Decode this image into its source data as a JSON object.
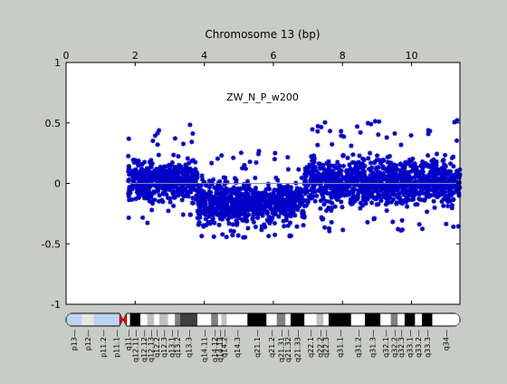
{
  "chart_data": {
    "type": "scatter",
    "title": "Chromosome 13 (bp)",
    "annotation": "ZW_N_P_w200",
    "xlabel": "",
    "ylabel": "",
    "xlim": [
      0,
      11.4
    ],
    "ylim": [
      -1,
      1
    ],
    "x_ticks": [
      0,
      2,
      4,
      6,
      8,
      10
    ],
    "x_tick_labels": [
      "0",
      "2",
      "4",
      "6",
      "8",
      "10"
    ],
    "y_ticks": [
      -1,
      -0.5,
      0,
      0.5,
      1
    ],
    "y_tick_labels": [
      "-1",
      "-0.5",
      "0",
      "0.5",
      "1"
    ],
    "x_axis_position": "top",
    "grid": false,
    "baseline_y": 0,
    "marker": "asterisk",
    "series": [
      {
        "color": "#0000c8",
        "segments": [
          {
            "x_start": 1.8,
            "x_end": 3.8,
            "center": 0.02,
            "typical_low": -0.22,
            "typical_high": 0.26,
            "min": -0.33,
            "max": 0.5
          },
          {
            "x_start": 3.8,
            "x_end": 6.9,
            "center": -0.16,
            "typical_low": -0.42,
            "typical_high": 0.1,
            "min": -0.45,
            "max": 0.27
          },
          {
            "x_start": 6.9,
            "x_end": 11.4,
            "center": 0.01,
            "typical_low": -0.28,
            "typical_high": 0.3,
            "min": -0.4,
            "max": 0.53
          }
        ]
      }
    ]
  },
  "ideogram": {
    "bands": [
      {
        "label": "p13",
        "x_start": 0.0,
        "x_end": 0.45,
        "color": "#bcd4f2"
      },
      {
        "label": "p12",
        "x_start": 0.45,
        "x_end": 0.8,
        "color": "#e6e6e6"
      },
      {
        "label": "p11.2",
        "x_start": 0.8,
        "x_end": 1.35,
        "color": "#bcd4f2"
      },
      {
        "label": "p11.1",
        "x_start": 1.35,
        "x_end": 1.55,
        "color": "#bcd4f2"
      },
      {
        "label": "q11",
        "x_start": 1.75,
        "x_end": 1.85,
        "color": "#ffffff"
      },
      {
        "label": "q12.11",
        "x_start": 1.85,
        "x_end": 2.15,
        "color": "#000000"
      },
      {
        "label": "q12.12",
        "x_start": 2.15,
        "x_end": 2.35,
        "color": "#ffffff"
      },
      {
        "label": "q12.13",
        "x_start": 2.35,
        "x_end": 2.55,
        "color": "#c0c0c0"
      },
      {
        "label": "q12.2",
        "x_start": 2.55,
        "x_end": 2.7,
        "color": "#ffffff"
      },
      {
        "label": "q12.3",
        "x_start": 2.7,
        "x_end": 2.95,
        "color": "#c0c0c0"
      },
      {
        "label": "q13.1",
        "x_start": 2.95,
        "x_end": 3.15,
        "color": "#ffffff"
      },
      {
        "label": "q13.2",
        "x_start": 3.15,
        "x_end": 3.3,
        "color": "#808080"
      },
      {
        "label": "q13.3",
        "x_start": 3.3,
        "x_end": 3.8,
        "color": "#404040"
      },
      {
        "label": "q14.11",
        "x_start": 3.8,
        "x_end": 4.2,
        "color": "#ffffff"
      },
      {
        "label": "q14.12",
        "x_start": 4.2,
        "x_end": 4.4,
        "color": "#808080"
      },
      {
        "label": "q14.13",
        "x_start": 4.4,
        "x_end": 4.5,
        "color": "#ffffff"
      },
      {
        "label": "q14.2",
        "x_start": 4.5,
        "x_end": 4.65,
        "color": "#c0c0c0"
      },
      {
        "label": "q14.3",
        "x_start": 4.65,
        "x_end": 5.25,
        "color": "#ffffff"
      },
      {
        "label": "q21.1",
        "x_start": 5.25,
        "x_end": 5.8,
        "color": "#000000"
      },
      {
        "label": "q21.2",
        "x_start": 5.8,
        "x_end": 6.1,
        "color": "#ffffff"
      },
      {
        "label": "q21.31",
        "x_start": 6.1,
        "x_end": 6.35,
        "color": "#808080"
      },
      {
        "label": "q21.32",
        "x_start": 6.35,
        "x_end": 6.5,
        "color": "#ffffff"
      },
      {
        "label": "q21.33",
        "x_start": 6.5,
        "x_end": 6.9,
        "color": "#000000"
      },
      {
        "label": "q22.1",
        "x_start": 6.9,
        "x_end": 7.25,
        "color": "#ffffff"
      },
      {
        "label": "q22.2",
        "x_start": 7.25,
        "x_end": 7.45,
        "color": "#c0c0c0"
      },
      {
        "label": "q22.3",
        "x_start": 7.45,
        "x_end": 7.6,
        "color": "#ffffff"
      },
      {
        "label": "q31.1",
        "x_start": 7.6,
        "x_end": 8.25,
        "color": "#000000"
      },
      {
        "label": "q31.2",
        "x_start": 8.25,
        "x_end": 8.65,
        "color": "#ffffff"
      },
      {
        "label": "q31.3",
        "x_start": 8.65,
        "x_end": 9.1,
        "color": "#000000"
      },
      {
        "label": "q32.1",
        "x_start": 9.1,
        "x_end": 9.4,
        "color": "#ffffff"
      },
      {
        "label": "q32.2",
        "x_start": 9.4,
        "x_end": 9.6,
        "color": "#808080"
      },
      {
        "label": "q32.3",
        "x_start": 9.6,
        "x_end": 9.8,
        "color": "#ffffff"
      },
      {
        "label": "q33.1",
        "x_start": 9.8,
        "x_end": 10.1,
        "color": "#000000"
      },
      {
        "label": "q33.2",
        "x_start": 10.1,
        "x_end": 10.3,
        "color": "#ffffff"
      },
      {
        "label": "q33.3",
        "x_start": 10.3,
        "x_end": 10.6,
        "color": "#000000"
      },
      {
        "label": "q34",
        "x_start": 10.6,
        "x_end": 11.4,
        "color": "#ffffff"
      }
    ],
    "centromere": {
      "x_start": 1.55,
      "x_end": 1.75,
      "color": "#ff0000"
    }
  }
}
